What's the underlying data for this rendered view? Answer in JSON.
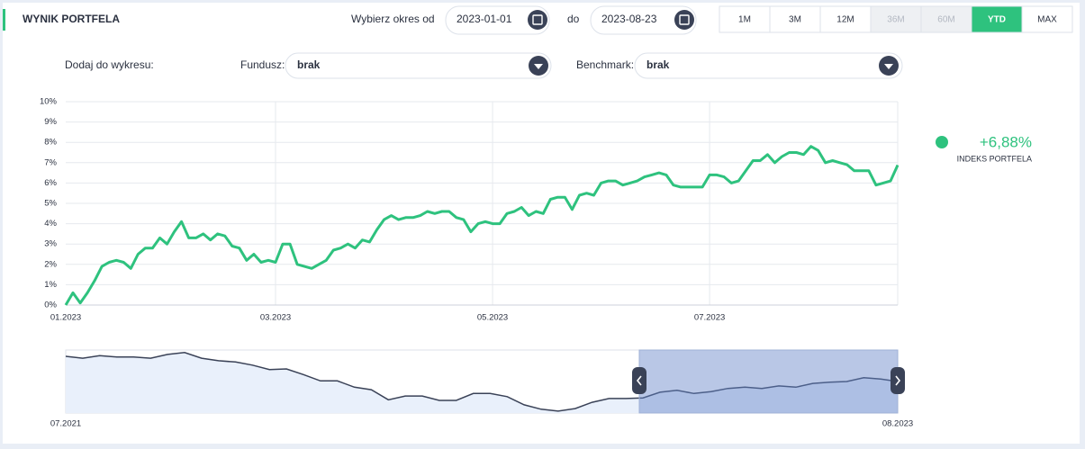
{
  "header": {
    "title": "WYNIK PORTFELA",
    "period_label": "Wybierz okres od",
    "date_from": "2023-01-01",
    "to_label": "do",
    "date_to": "2023-08-23",
    "ranges": [
      {
        "label": "1M",
        "state": "normal"
      },
      {
        "label": "3M",
        "state": "normal"
      },
      {
        "label": "12M",
        "state": "normal"
      },
      {
        "label": "36M",
        "state": "disabled"
      },
      {
        "label": "60M",
        "state": "disabled"
      },
      {
        "label": "YTD",
        "state": "active"
      },
      {
        "label": "MAX",
        "state": "normal"
      }
    ]
  },
  "filters": {
    "label": "Dodaj do wykresu:",
    "fund_label": "Fundusz:",
    "fund_value": "brak",
    "benchmark_label": "Benchmark:",
    "benchmark_value": "brak"
  },
  "legend": {
    "value": "+6,88%",
    "label": "INDEKS PORTFELA",
    "color": "#2ec27e"
  },
  "chart_data": [
    {
      "type": "line",
      "categories": [
        "01.2023",
        null,
        null,
        null,
        null,
        null,
        null,
        null,
        null,
        null,
        null,
        null,
        null,
        null,
        null,
        null,
        null,
        null,
        null,
        null,
        null,
        null,
        null,
        null,
        null,
        null,
        null,
        null,
        null,
        "03.2023",
        null,
        null,
        null,
        null,
        null,
        null,
        null,
        null,
        null,
        null,
        null,
        null,
        null,
        null,
        null,
        null,
        null,
        null,
        null,
        null,
        null,
        null,
        null,
        null,
        null,
        null,
        null,
        null,
        null,
        "05.2023",
        null,
        null,
        null,
        null,
        null,
        null,
        null,
        null,
        null,
        null,
        null,
        null,
        null,
        null,
        null,
        null,
        null,
        null,
        null,
        null,
        null,
        null,
        null,
        null,
        null,
        null,
        null,
        null,
        null,
        "07.2023",
        null,
        null,
        null,
        null,
        null,
        null,
        null,
        null,
        null,
        null,
        null,
        null,
        null,
        null,
        null,
        null,
        null,
        null,
        null,
        null,
        null,
        null,
        null,
        null,
        null,
        null
      ],
      "series": [
        {
          "name": "INDEKS PORTFELA",
          "color": "#2ec27e",
          "values": [
            0,
            0.6,
            0.1,
            0.6,
            1.2,
            1.9,
            2.1,
            2.2,
            2.1,
            1.8,
            2.5,
            2.8,
            2.8,
            3.3,
            3.0,
            3.6,
            4.1,
            3.3,
            3.3,
            3.5,
            3.2,
            3.5,
            3.4,
            2.9,
            2.8,
            2.2,
            2.5,
            2.1,
            2.2,
            2.1,
            3.0,
            3.0,
            2.0,
            1.9,
            1.8,
            2.0,
            2.2,
            2.7,
            2.8,
            3.0,
            2.8,
            3.2,
            3.1,
            3.7,
            4.2,
            4.4,
            4.2,
            4.3,
            4.3,
            4.4,
            4.6,
            4.5,
            4.6,
            4.6,
            4.3,
            4.2,
            3.6,
            4.0,
            4.1,
            4.0,
            4.0,
            4.5,
            4.6,
            4.8,
            4.4,
            4.6,
            4.5,
            5.2,
            5.3,
            5.3,
            4.7,
            5.4,
            5.5,
            5.4,
            6.0,
            6.1,
            6.1,
            5.9,
            6.0,
            6.1,
            6.3,
            6.4,
            6.5,
            6.4,
            5.9,
            5.8,
            5.8,
            5.8,
            5.8,
            6.4,
            6.4,
            6.3,
            6.0,
            6.1,
            6.6,
            7.1,
            7.1,
            7.4,
            7.0,
            7.3,
            7.5,
            7.5,
            7.4,
            7.8,
            7.6,
            7.0,
            7.1,
            7.0,
            6.9,
            6.6,
            6.6,
            6.6,
            5.9,
            6.0,
            6.1,
            6.88
          ]
        }
      ],
      "ylim": [
        0,
        10
      ],
      "yticks": [
        {
          "value": 0,
          "label": "0%"
        },
        {
          "value": 1,
          "label": "1%"
        },
        {
          "value": 2,
          "label": "2%"
        },
        {
          "value": 3,
          "label": "3%"
        },
        {
          "value": 4,
          "label": "4%"
        },
        {
          "value": 5,
          "label": "5%"
        },
        {
          "value": 6,
          "label": "6%"
        },
        {
          "value": 7,
          "label": "7%"
        },
        {
          "value": 8,
          "label": "8%"
        },
        {
          "value": 9,
          "label": "9%"
        },
        {
          "value": 10,
          "label": "10%"
        }
      ],
      "grid": true
    },
    {
      "type": "area",
      "categories": [
        "07.2021",
        null,
        null,
        null,
        null,
        null,
        null,
        null,
        null,
        null,
        null,
        null,
        null,
        null,
        null,
        null,
        null,
        null,
        null,
        null,
        null,
        null,
        null,
        null,
        null,
        null,
        null,
        null,
        null,
        null,
        null,
        null,
        null,
        null,
        null,
        null,
        null,
        null,
        null,
        null,
        null,
        null,
        null,
        null,
        null,
        null,
        null,
        null,
        null,
        "08.2023"
      ],
      "series": [
        {
          "color": "#3a4257",
          "values": [
            90,
            87,
            91,
            89,
            89,
            87,
            93,
            96,
            87,
            83,
            81,
            76,
            69,
            70,
            61,
            51,
            51,
            41,
            37,
            21,
            27,
            27,
            20,
            20,
            31,
            31,
            26,
            13,
            6,
            3,
            7,
            17,
            23,
            23,
            24,
            33,
            36,
            31,
            34,
            39,
            41,
            39,
            43,
            41,
            47,
            49,
            50,
            56,
            54,
            50
          ]
        }
      ],
      "ylim": [
        0,
        100
      ]
    }
  ]
}
